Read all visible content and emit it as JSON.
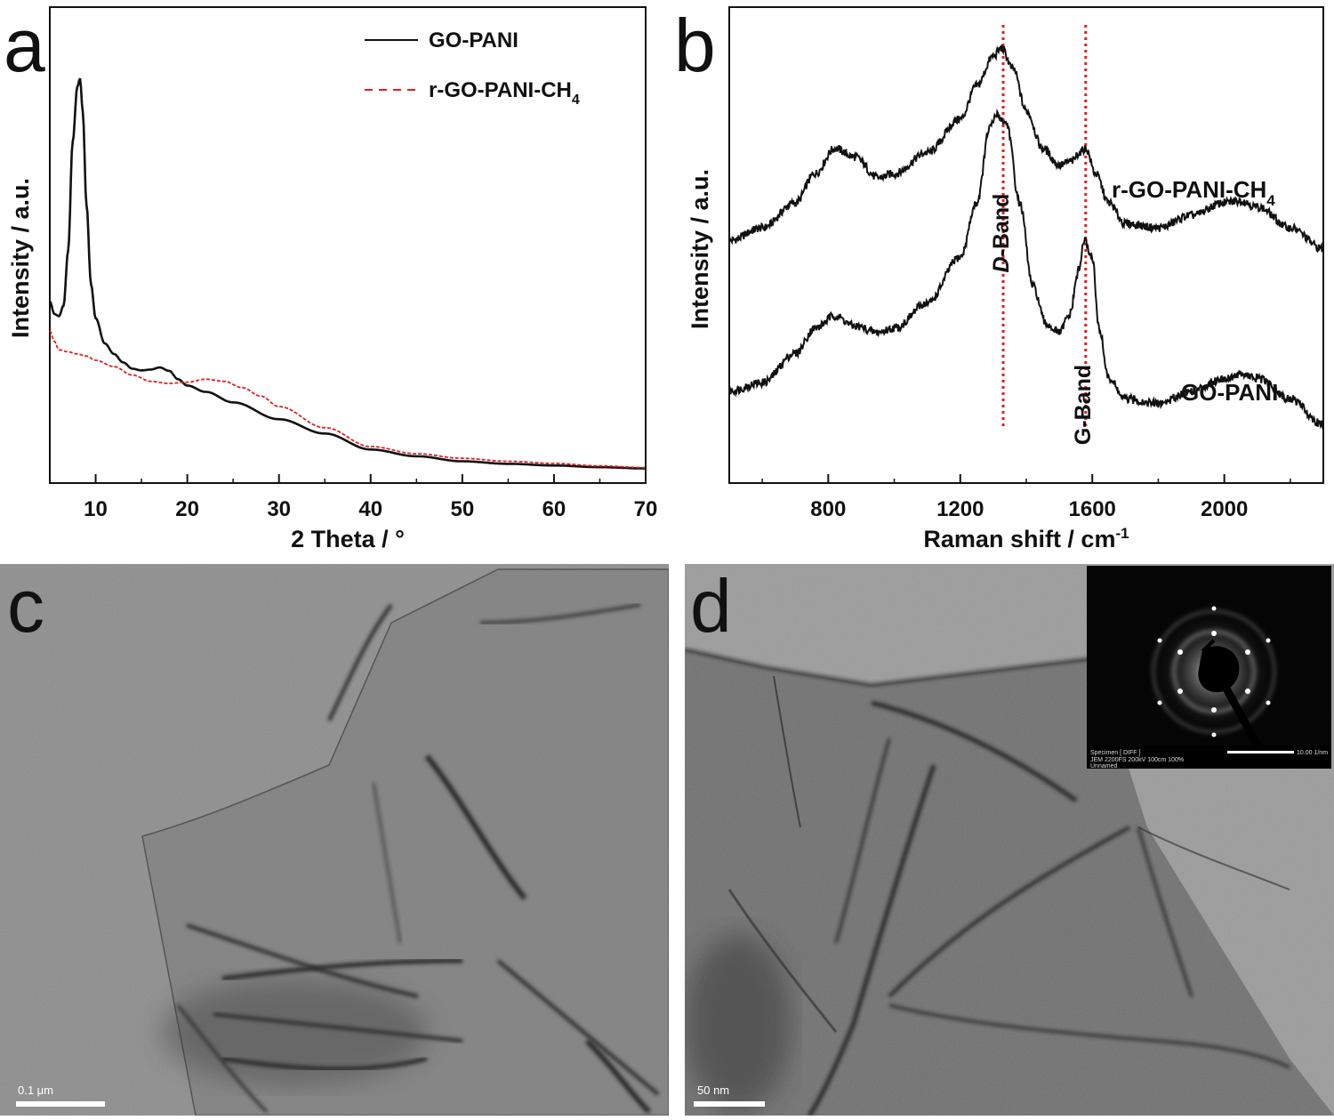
{
  "chart_data": [
    {
      "panel": "a",
      "type": "line",
      "xlabel": "2 Theta / °",
      "ylabel": "Intensity / a.u.",
      "xlim": [
        5,
        70
      ],
      "ylim": [
        0,
        100
      ],
      "xticks": [
        10,
        20,
        30,
        40,
        50,
        60,
        70
      ],
      "legend_position": "top-right",
      "series": [
        {
          "name": "GO-PANI",
          "color": "#111111",
          "style": "solid",
          "x": [
            5,
            5.5,
            6,
            6.5,
            7,
            7.5,
            8,
            8.3,
            8.6,
            9,
            9.5,
            10,
            11,
            12,
            13,
            14,
            15,
            16,
            17,
            18,
            19,
            20,
            22,
            25,
            30,
            35,
            40,
            45,
            50,
            55,
            60,
            65,
            70
          ],
          "y": [
            40,
            37,
            36.5,
            39,
            52,
            78,
            91,
            93,
            85,
            63,
            44,
            36,
            30,
            27.5,
            25.5,
            24,
            23.6,
            23.8,
            24.3,
            23.5,
            21.5,
            20,
            18.5,
            16,
            12,
            8.6,
            4.8,
            3.2,
            2,
            1.4,
            1,
            0.6,
            0.3
          ]
        },
        {
          "name": "r-GO-PANI-CH4",
          "color": "#e02020",
          "style": "dashed",
          "x": [
            5,
            5.5,
            6,
            7,
            8,
            9,
            10,
            12,
            14,
            16,
            18,
            20,
            22,
            24,
            26,
            28,
            30,
            35,
            40,
            45,
            50,
            55,
            60,
            65,
            70
          ],
          "y": [
            33,
            30.5,
            28.5,
            28,
            27.5,
            27,
            26,
            24.5,
            22.5,
            21,
            20.5,
            20.8,
            21.5,
            21,
            19.5,
            17.5,
            15,
            10,
            5.5,
            3.8,
            2.7,
            2,
            1.5,
            0.9,
            0.5
          ]
        }
      ]
    },
    {
      "panel": "b",
      "type": "line",
      "xlabel": "Raman shift / cm",
      "xlabel_sup": "-1",
      "ylabel": "Intensity / a.u.",
      "xlim": [
        500,
        2300
      ],
      "ylim": [
        0,
        100
      ],
      "xticks": [
        800,
        1200,
        1600,
        2000
      ],
      "series": [
        {
          "name": "r-GO-PANI-CH4",
          "color": "#111111",
          "x": [
            500,
            600,
            700,
            760,
            820,
            880,
            950,
            1000,
            1100,
            1200,
            1250,
            1300,
            1325,
            1360,
            1400,
            1450,
            1500,
            1540,
            1560,
            1580,
            1610,
            1650,
            1700,
            1800,
            1900,
            2000,
            2050,
            2100,
            2200,
            2300
          ],
          "y": [
            51,
            54,
            60,
            67,
            73,
            71,
            66,
            67,
            72,
            80,
            88,
            95,
            97,
            92,
            82,
            73,
            69,
            70,
            72,
            73,
            67,
            60,
            55,
            54,
            57,
            60,
            60.5,
            59,
            54,
            49
          ]
        },
        {
          "name": "GO-PANI",
          "color": "#111111",
          "x": [
            500,
            600,
            700,
            760,
            820,
            880,
            950,
            1000,
            1100,
            1200,
            1250,
            1290,
            1310,
            1340,
            1380,
            1420,
            1460,
            1500,
            1530,
            1560,
            1575,
            1600,
            1620,
            1650,
            1700,
            1800,
            1900,
            2000,
            2050,
            2100,
            2200,
            2300
          ],
          "y": [
            15,
            17,
            24,
            30,
            33,
            30.5,
            29,
            30,
            36,
            47,
            60,
            78,
            81,
            79,
            60,
            40,
            31,
            29,
            33,
            44,
            51,
            47,
            30,
            18,
            13,
            12,
            15,
            18,
            19,
            18,
            13,
            7
          ]
        }
      ],
      "reference_lines": [
        {
          "x": 1330,
          "label": "D-Band"
        },
        {
          "x": 1580,
          "label": "G-Band"
        }
      ]
    }
  ],
  "panel_a": {
    "letter": "a",
    "legend": {
      "entry1": "GO-PANI",
      "entry2_main": "r-GO-PANI-CH",
      "entry2_sub": "4"
    }
  },
  "panel_b": {
    "letter": "b",
    "label_top_main": "r-GO-PANI-CH",
    "label_top_sub": "4",
    "label_bottom": "GO-PANI",
    "d_band_italic": "D",
    "d_band_rest": "-Band",
    "g_band": "G-Band"
  },
  "panel_c": {
    "letter": "c",
    "scale_bar": "0.1 μm"
  },
  "panel_d": {
    "letter": "d",
    "scale_bar": "50 nm",
    "inset": {
      "caption1": "Specimen [ DIFF ]",
      "caption2": "JEM 2200FS 200kV 100cm 100%",
      "caption3": "Unnamed",
      "scale_text": "10.00 1/nm"
    }
  },
  "colors": {
    "go_pani": "#111111",
    "rgo_pani_ch4": "#e02020",
    "reference_line": "#e02020"
  }
}
